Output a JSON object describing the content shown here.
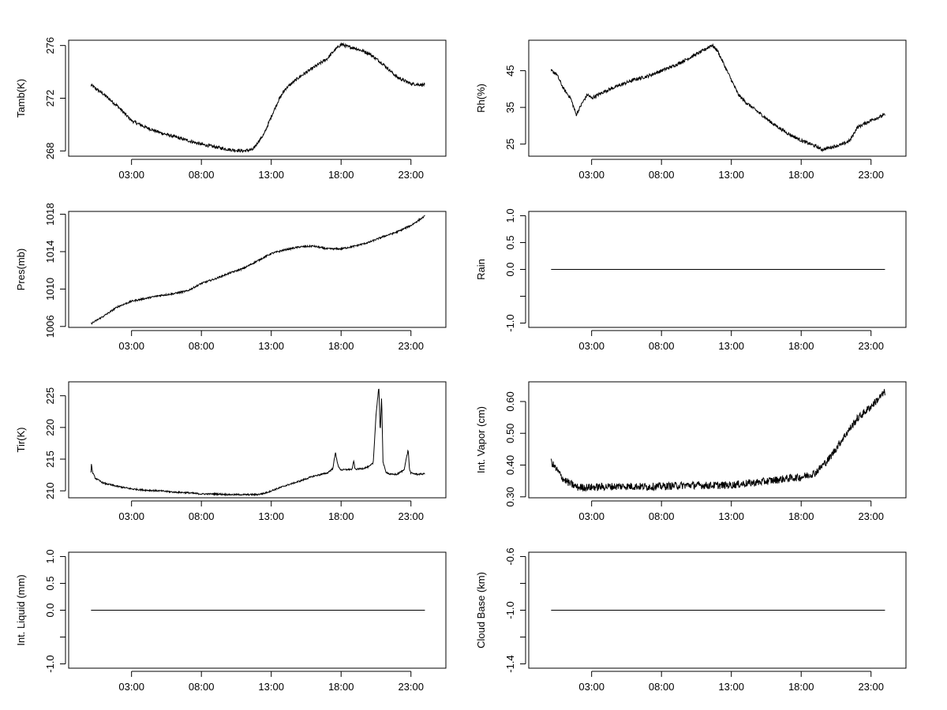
{
  "chart_data": [
    {
      "type": "line",
      "ylabel": "Tamb(K)",
      "xlabel": "",
      "x_ticks": [
        3,
        8,
        13,
        18,
        23
      ],
      "x_tick_labels": [
        "03:00",
        "08:00",
        "13:00",
        "18:00",
        "23:00"
      ],
      "xlim": [
        -1.5,
        25.5
      ],
      "ylim": [
        267.6,
        276.4
      ],
      "y_ticks": [
        268,
        272,
        276
      ],
      "y_tick_labels": [
        "268",
        "272",
        "276"
      ],
      "series": [
        {
          "name": "Tamb(K)",
          "x": [
            0.1,
            1,
            2,
            3,
            4,
            5,
            6,
            7,
            8,
            9,
            10,
            11,
            11.7,
            12,
            12.5,
            13,
            13.5,
            14,
            15,
            16,
            17,
            17.5,
            18,
            18.5,
            19,
            20,
            21,
            22,
            23,
            24
          ],
          "y": [
            273,
            272.3,
            271.4,
            270.3,
            269.8,
            269.4,
            269.1,
            268.8,
            268.5,
            268.3,
            268.1,
            268,
            268.1,
            268.6,
            269.3,
            270.6,
            271.8,
            272.7,
            273.6,
            274.3,
            275,
            275.6,
            276.1,
            275.9,
            275.8,
            275.4,
            274.6,
            273.6,
            273.1,
            273
          ],
          "noise": 0.12
        }
      ]
    },
    {
      "type": "line",
      "ylabel": "Rh(%)",
      "xlabel": "",
      "x_ticks": [
        3,
        8,
        13,
        18,
        23
      ],
      "x_tick_labels": [
        "03:00",
        "08:00",
        "13:00",
        "18:00",
        "23:00"
      ],
      "xlim": [
        -1.5,
        25.5
      ],
      "ylim": [
        21.7,
        53.3
      ],
      "y_ticks": [
        25,
        35,
        45
      ],
      "y_tick_labels": [
        "25",
        "35",
        "45"
      ],
      "series": [
        {
          "name": "Rh(%)",
          "x": [
            0.1,
            0.5,
            1,
            1.5,
            1.9,
            2.3,
            2.7,
            3,
            3.5,
            4,
            5,
            6,
            7,
            8,
            9,
            10,
            11,
            11.6,
            12,
            12.5,
            13,
            13.5,
            14,
            15,
            16,
            17,
            18,
            19,
            19.5,
            20,
            21,
            21.5,
            22,
            23,
            24
          ],
          "y": [
            45,
            44,
            40,
            37.5,
            33,
            36,
            38.5,
            37.5,
            38.5,
            39.5,
            41,
            42.5,
            43.5,
            45,
            46.5,
            48.5,
            50.5,
            52,
            50.5,
            46.5,
            42.5,
            38.5,
            36.5,
            33.5,
            30.5,
            28,
            26,
            24.5,
            23.5,
            24,
            25,
            26,
            29.5,
            31.5,
            33
          ],
          "noise": 0.45
        }
      ]
    },
    {
      "type": "line",
      "ylabel": "Pres(mb)",
      "xlabel": "",
      "x_ticks": [
        3,
        8,
        13,
        18,
        23
      ],
      "x_tick_labels": [
        "03:00",
        "08:00",
        "13:00",
        "18:00",
        "23:00"
      ],
      "xlim": [
        -1.5,
        25.5
      ],
      "ylim": [
        1005.9,
        1018.3
      ],
      "y_ticks": [
        1006,
        1010,
        1014,
        1018
      ],
      "y_tick_labels": [
        "1006",
        "1010",
        "1014",
        "1018"
      ],
      "series": [
        {
          "name": "Pres(mb)",
          "x": [
            0.1,
            1,
            2,
            3,
            4,
            5,
            6,
            7,
            8,
            9,
            10,
            11,
            12,
            13,
            14,
            15,
            16,
            17,
            18,
            19,
            20,
            21,
            22,
            23,
            24
          ],
          "y": [
            1006.3,
            1007.1,
            1008.1,
            1008.7,
            1009,
            1009.3,
            1009.5,
            1009.8,
            1010.6,
            1011.1,
            1011.7,
            1012.2,
            1013,
            1013.8,
            1014.2,
            1014.5,
            1014.6,
            1014.3,
            1014.3,
            1014.6,
            1015,
            1015.6,
            1016.1,
            1016.8,
            1017.8
          ],
          "noise": 0.09
        }
      ]
    },
    {
      "type": "line",
      "ylabel": "Rain",
      "xlabel": "",
      "x_ticks": [
        3,
        8,
        13,
        18,
        23
      ],
      "x_tick_labels": [
        "03:00",
        "08:00",
        "13:00",
        "18:00",
        "23:00"
      ],
      "xlim": [
        -1.5,
        25.5
      ],
      "ylim": [
        -1.08,
        1.08
      ],
      "y_ticks": [
        -1,
        -0.5,
        0,
        0.5,
        1
      ],
      "y_tick_labels": [
        "-1.0",
        "",
        "0.0",
        "0.5",
        "1.0"
      ],
      "series": [
        {
          "name": "Rain",
          "x": [
            0.1,
            24
          ],
          "y": [
            0,
            0
          ],
          "noise": 0
        }
      ]
    },
    {
      "type": "line",
      "ylabel": "Tir(K)",
      "xlabel": "",
      "x_ticks": [
        3,
        8,
        13,
        18,
        23
      ],
      "x_tick_labels": [
        "03:00",
        "08:00",
        "13:00",
        "18:00",
        "23:00"
      ],
      "xlim": [
        -1.5,
        25.5
      ],
      "ylim": [
        208.9,
        227.2
      ],
      "y_ticks": [
        210,
        215,
        220,
        225
      ],
      "y_tick_labels": [
        "210",
        "215",
        "220",
        "225"
      ],
      "series": [
        {
          "name": "Tir(K)",
          "x": [
            0.1,
            0.12,
            0.2,
            0.4,
            1,
            2,
            3,
            4,
            5,
            6,
            7,
            8,
            9,
            10,
            11,
            12,
            12.5,
            13,
            14,
            15,
            16,
            17,
            17.4,
            17.6,
            17.8,
            18,
            18.8,
            18.9,
            19,
            19.5,
            20,
            20.3,
            20.5,
            20.7,
            20.8,
            20.9,
            21,
            21.2,
            21.5,
            22,
            22.5,
            22.8,
            22.9,
            23,
            23.5,
            24
          ],
          "y": [
            213,
            214.4,
            213,
            212,
            211.2,
            210.7,
            210.3,
            210.1,
            210,
            209.8,
            209.7,
            209.5,
            209.5,
            209.4,
            209.4,
            209.4,
            209.6,
            210,
            210.8,
            211.5,
            212.3,
            212.8,
            213.5,
            216,
            213.8,
            213.3,
            213.4,
            214.8,
            213.4,
            213.5,
            213.8,
            214.4,
            222,
            226.5,
            219,
            225,
            214.5,
            213,
            212.6,
            212.6,
            213.3,
            216.5,
            213.3,
            212.8,
            212.6,
            212.7
          ],
          "noise": 0.12
        }
      ]
    },
    {
      "type": "line",
      "ylabel": "Int. Vapor (cm)",
      "xlabel": "",
      "x_ticks": [
        3,
        8,
        13,
        18,
        23
      ],
      "x_tick_labels": [
        "03:00",
        "08:00",
        "13:00",
        "18:00",
        "23:00"
      ],
      "xlim": [
        -1.5,
        25.5
      ],
      "ylim": [
        0.297,
        0.662
      ],
      "y_ticks": [
        0.3,
        0.4,
        0.5,
        0.6
      ],
      "y_tick_labels": [
        "0.30",
        "0.40",
        "0.50",
        "0.60"
      ],
      "series": [
        {
          "name": "Int. Vapor (cm)",
          "x": [
            0.1,
            0.5,
            1,
            1.5,
            2,
            3,
            4,
            5,
            6,
            7,
            8,
            9,
            10,
            11,
            12,
            13,
            14,
            15,
            16,
            17,
            18,
            19,
            20,
            21,
            22,
            23,
            24
          ],
          "y": [
            0.41,
            0.385,
            0.355,
            0.34,
            0.33,
            0.33,
            0.332,
            0.333,
            0.333,
            0.332,
            0.333,
            0.335,
            0.337,
            0.336,
            0.336,
            0.337,
            0.342,
            0.346,
            0.352,
            0.358,
            0.362,
            0.375,
            0.42,
            0.485,
            0.545,
            0.585,
            0.63
          ],
          "noise": 0.012
        }
      ]
    },
    {
      "type": "line",
      "ylabel": "Int. Liquid (mm)",
      "xlabel": "",
      "x_ticks": [
        3,
        8,
        13,
        18,
        23
      ],
      "x_tick_labels": [
        "03:00",
        "08:00",
        "13:00",
        "18:00",
        "23:00"
      ],
      "xlim": [
        -1.5,
        25.5
      ],
      "ylim": [
        -1.08,
        1.08
      ],
      "y_ticks": [
        -1,
        -0.5,
        0,
        0.5,
        1
      ],
      "y_tick_labels": [
        "-1.0",
        "",
        "0.0",
        "0.5",
        "1.0"
      ],
      "series": [
        {
          "name": "Int. Liquid (mm)",
          "x": [
            0.1,
            24
          ],
          "y": [
            0,
            0
          ],
          "noise": 0
        }
      ]
    },
    {
      "type": "line",
      "ylabel": "Cloud Base (km)",
      "xlabel": "",
      "x_ticks": [
        3,
        8,
        13,
        18,
        23
      ],
      "x_tick_labels": [
        "03:00",
        "08:00",
        "13:00",
        "18:00",
        "23:00"
      ],
      "xlim": [
        -1.5,
        25.5
      ],
      "ylim": [
        -1.432,
        -0.568
      ],
      "y_ticks": [
        -1.4,
        -1.2,
        -1.0,
        -0.8,
        -0.6
      ],
      "y_tick_labels": [
        "-1.4",
        "",
        "-1.0",
        "",
        "-0.6"
      ],
      "series": [
        {
          "name": "Cloud Base (km)",
          "x": [
            0.1,
            24
          ],
          "y": [
            -1,
            -1
          ],
          "noise": 0
        }
      ]
    }
  ]
}
